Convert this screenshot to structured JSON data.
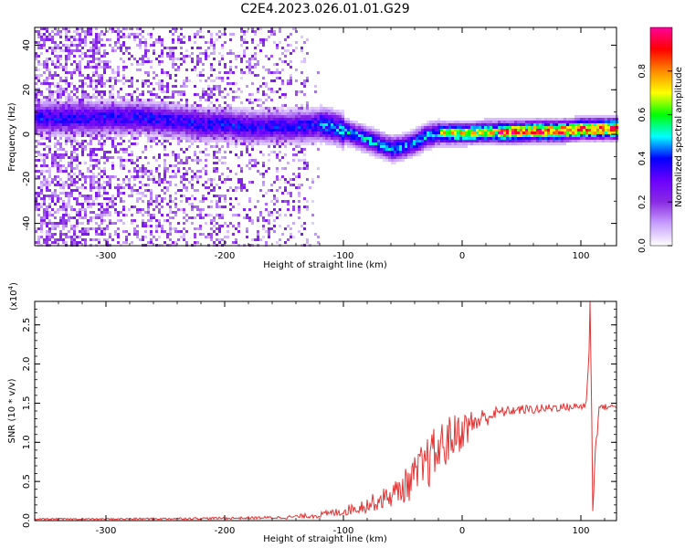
{
  "title": "C2E4.2023.026.01.01.G29",
  "chart_data": [
    {
      "type": "heatmap",
      "xlabel": "Height of straight line (km)",
      "ylabel": "Frequency (Hz)",
      "xlim": [
        -360,
        130
      ],
      "ylim": [
        -50,
        48
      ],
      "x_ticks": [
        -300,
        -200,
        -100,
        0,
        100
      ],
      "x_tick_labels": [
        "-300",
        "-200",
        "-100",
        "0",
        "100"
      ],
      "y_ticks": [
        -40,
        -20,
        0,
        20,
        40
      ],
      "y_tick_labels": [
        "-40",
        "-20",
        "0",
        "20",
        "40"
      ],
      "colorbar": {
        "label": "Normalized spectral amplitude",
        "range": [
          0,
          1
        ],
        "ticks": [
          0,
          0.2,
          0.4,
          0.6,
          0.8
        ],
        "tick_labels": [
          "0.0",
          "0.2",
          "0.4",
          "0.6",
          "0.8"
        ],
        "colors": [
          "#ffffff",
          "#c8a0ff",
          "#8a2be2",
          "#6a00ff",
          "#0000ff",
          "#00ffff",
          "#00ff00",
          "#ffff00",
          "#ff8800",
          "#ff0000",
          "#ff0099"
        ]
      },
      "ridge": {
        "x": [
          -270,
          -250,
          -220,
          -200,
          -180,
          -160,
          -140,
          -120,
          -110,
          -100,
          -90,
          -80,
          -70,
          -60,
          -50,
          -40,
          -30,
          -20,
          -10,
          0,
          20,
          40,
          60,
          80,
          100,
          110,
          130
        ],
        "y": [
          8,
          7,
          5,
          5,
          4,
          4,
          4,
          5,
          4,
          2,
          0,
          -2,
          -4,
          -6,
          -5,
          -3,
          0,
          1,
          1,
          1,
          1.5,
          1.5,
          2,
          2,
          3,
          3,
          3
        ]
      },
      "grid": false
    },
    {
      "type": "line",
      "xlabel": "Height of straight line (km)",
      "ylabel": "SNR (10 * v/v)",
      "y_multiplier": "(x10",
      "y_multiplier_exp": "4",
      "y_multiplier_close": ")",
      "xlim": [
        -360,
        130
      ],
      "ylim": [
        0,
        2.8
      ],
      "x_ticks": [
        -300,
        -200,
        -100,
        0,
        100
      ],
      "x_tick_labels": [
        "-300",
        "-200",
        "-100",
        "0",
        "100"
      ],
      "y_ticks": [
        0,
        0.5,
        1.0,
        1.5,
        2.0,
        2.5
      ],
      "y_tick_labels": [
        "0.0",
        "0.5",
        "1.0",
        "1.5",
        "2.0",
        "2.5"
      ],
      "series": [
        {
          "color": "#e53333",
          "envelope_x": [
            -360,
            -300,
            -200,
            -150,
            -120,
            -100,
            -80,
            -60,
            -50,
            -40,
            -30,
            -20,
            -10,
            0,
            10,
            20,
            30,
            40,
            50,
            60,
            70,
            80,
            90,
            100,
            105,
            108,
            110,
            115,
            120,
            130
          ],
          "envelope_y": [
            0.02,
            0.02,
            0.03,
            0.04,
            0.07,
            0.12,
            0.2,
            0.32,
            0.42,
            0.55,
            0.72,
            0.9,
            1.05,
            1.15,
            1.25,
            1.32,
            1.38,
            1.4,
            1.42,
            1.42,
            1.43,
            1.45,
            1.45,
            1.46,
            1.5,
            2.8,
            0.3,
            1.45,
            1.45,
            1.46
          ],
          "noise_amplitude": [
            0.01,
            0.01,
            0.015,
            0.02,
            0.04,
            0.06,
            0.1,
            0.15,
            0.2,
            0.28,
            0.35,
            0.35,
            0.3,
            0.25,
            0.18,
            0.12,
            0.08,
            0.06,
            0.06,
            0.06,
            0.06,
            0.06,
            0.05,
            0.05,
            0.1,
            0.3,
            0.3,
            0.04,
            0.04,
            0.03
          ]
        }
      ],
      "grid": false
    }
  ]
}
